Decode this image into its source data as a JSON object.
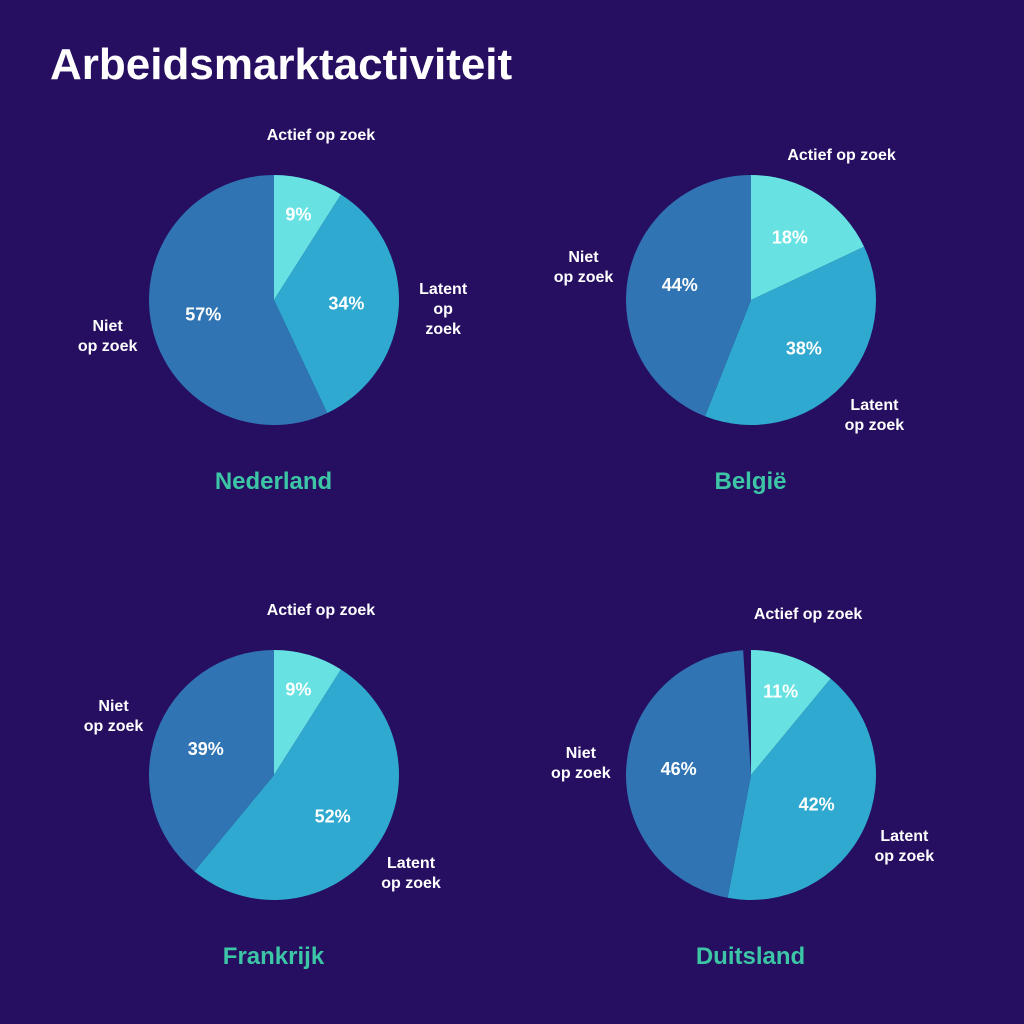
{
  "title": "Arbeidsmarktactiviteit",
  "background_color": "#260E61",
  "title_color": "#ffffff",
  "title_fontsize": 44,
  "pie_radius": 125,
  "label_color": "#ffffff",
  "label_fontsize": 16,
  "pct_fontsize": 18,
  "country_color": "#3CC6A5",
  "country_fontsize": 24,
  "categories": [
    {
      "key": "actief",
      "label": "Actief op zoek",
      "color": "#67E1E1"
    },
    {
      "key": "latent",
      "label": "Latent\nop zoek",
      "color": "#2FA9CF"
    },
    {
      "key": "niet",
      "label": "Niet\nop zoek",
      "color": "#3074B3"
    }
  ],
  "charts": [
    {
      "country": "Nederland",
      "values": {
        "actief": 9,
        "latent": 34,
        "niet": 57
      }
    },
    {
      "country": "België",
      "values": {
        "actief": 18,
        "latent": 38,
        "niet": 44
      }
    },
    {
      "country": "Frankrijk",
      "values": {
        "actief": 9,
        "latent": 52,
        "niet": 39
      }
    },
    {
      "country": "Duitsland",
      "values": {
        "actief": 11,
        "latent": 42,
        "niet": 46
      }
    }
  ]
}
